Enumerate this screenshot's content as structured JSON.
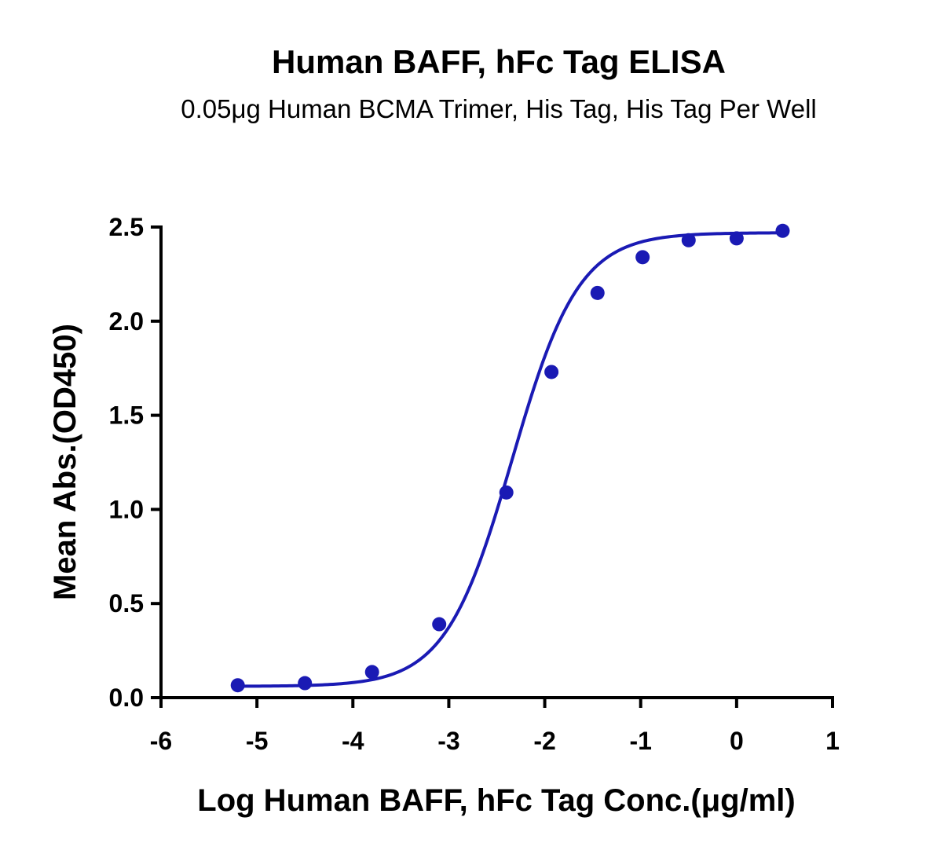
{
  "chart_data": {
    "type": "scatter",
    "title": "Human BAFF, hFc Tag ELISA",
    "subtitle": "0.05μg Human BCMA Trimer, His Tag, His Tag Per Well",
    "xlabel": "Log Human BAFF, hFc Tag Conc.(μg/ml)",
    "ylabel": "Mean Abs.(OD450)",
    "xlim": [
      -6,
      1
    ],
    "ylim": [
      0,
      2.5
    ],
    "x_ticks": [
      "-6",
      "-5",
      "-4",
      "-3",
      "-2",
      "-1",
      "0",
      "1"
    ],
    "y_ticks": [
      "0.0",
      "0.5",
      "1.0",
      "1.5",
      "2.0",
      "2.5"
    ],
    "grid": false,
    "series": [
      {
        "color": "#1a1ab4",
        "x": [
          -5.2,
          -4.5,
          -3.8,
          -3.1,
          -2.4,
          -1.93,
          -1.45,
          -0.98,
          -0.5,
          0.0,
          0.48
        ],
        "y": [
          0.066,
          0.077,
          0.136,
          0.39,
          1.09,
          1.73,
          2.15,
          2.34,
          2.43,
          2.44,
          2.48
        ],
        "fit": {
          "model": "4PL",
          "bottom": 0.06,
          "top": 2.47,
          "ec50_log": -2.34,
          "hill": 1.25
        }
      }
    ]
  }
}
